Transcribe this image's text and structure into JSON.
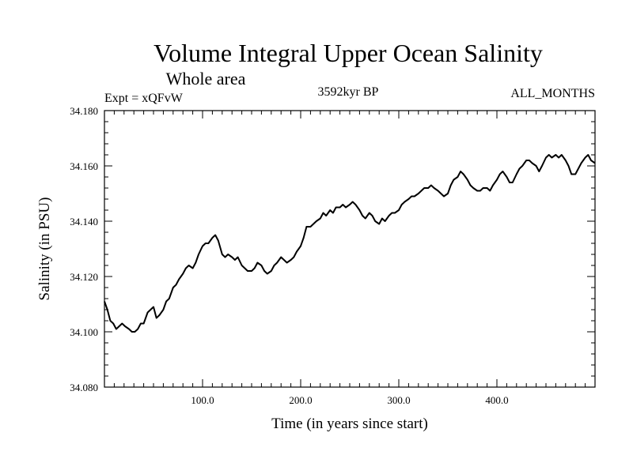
{
  "chart_data": {
    "type": "line",
    "title": "Volume Integral Upper Ocean Salinity",
    "subtitle": "Whole area",
    "experiment_label": "Expt = xQFvW",
    "period_label": "3592kyr BP",
    "months_label": "ALL_MONTHS",
    "xlabel": "Time (in years since start)",
    "ylabel": "Salinity (in PSU)",
    "xlim": [
      0,
      500
    ],
    "ylim": [
      34.08,
      34.18
    ],
    "x_ticks": [
      100,
      200,
      300,
      400
    ],
    "x_tick_labels": [
      "100.0",
      "200.0",
      "300.0",
      "400.0"
    ],
    "y_ticks": [
      34.08,
      34.1,
      34.12,
      34.14,
      34.16,
      34.18
    ],
    "y_tick_labels": [
      "34.080",
      "34.100",
      "34.120",
      "34.140",
      "34.160",
      "34.180"
    ],
    "grid": false,
    "series": [
      {
        "name": "Salinity",
        "color": "#000000",
        "x": [
          0,
          3,
          6,
          9,
          12,
          15,
          18,
          21,
          25,
          28,
          31,
          34,
          37,
          40,
          44,
          47,
          50,
          53,
          56,
          60,
          63,
          66,
          70,
          73,
          76,
          80,
          83,
          86,
          90,
          93,
          96,
          100,
          103,
          106,
          110,
          113,
          116,
          120,
          123,
          126,
          130,
          133,
          136,
          140,
          143,
          146,
          150,
          153,
          156,
          160,
          163,
          166,
          170,
          173,
          176,
          180,
          183,
          186,
          190,
          193,
          196,
          200,
          203,
          206,
          210,
          213,
          216,
          220,
          223,
          226,
          230,
          233,
          236,
          240,
          243,
          246,
          250,
          253,
          256,
          260,
          263,
          266,
          270,
          273,
          276,
          280,
          283,
          286,
          290,
          293,
          296,
          300,
          303,
          306,
          310,
          313,
          316,
          320,
          323,
          326,
          330,
          333,
          336,
          340,
          343,
          346,
          350,
          353,
          356,
          360,
          363,
          366,
          370,
          373,
          376,
          380,
          383,
          386,
          390,
          393,
          396,
          400,
          403,
          406,
          410,
          413,
          416,
          420,
          423,
          426,
          430,
          433,
          436,
          440,
          443,
          446,
          450,
          453,
          456,
          460,
          463,
          466,
          470,
          473,
          476,
          480,
          483,
          486,
          490,
          493,
          496,
          500
        ],
        "values": [
          34.111,
          34.108,
          34.104,
          34.103,
          34.101,
          34.102,
          34.103,
          34.102,
          34.101,
          34.1,
          34.1,
          34.101,
          34.103,
          34.103,
          34.107,
          34.108,
          34.109,
          34.105,
          34.106,
          34.108,
          34.111,
          34.112,
          34.116,
          34.117,
          34.119,
          34.121,
          34.123,
          34.124,
          34.123,
          34.125,
          34.128,
          34.131,
          34.132,
          34.132,
          34.134,
          34.135,
          34.133,
          34.128,
          34.127,
          34.128,
          34.127,
          34.126,
          34.127,
          34.124,
          34.123,
          34.122,
          34.122,
          34.123,
          34.125,
          34.124,
          34.122,
          34.121,
          34.122,
          34.124,
          34.125,
          34.127,
          34.126,
          34.125,
          34.126,
          34.127,
          34.129,
          34.131,
          34.134,
          34.138,
          34.138,
          34.139,
          34.14,
          34.141,
          34.143,
          34.142,
          34.144,
          34.143,
          34.145,
          34.145,
          34.146,
          34.145,
          34.146,
          34.147,
          34.146,
          34.144,
          34.142,
          34.141,
          34.143,
          34.142,
          34.14,
          34.139,
          34.141,
          34.14,
          34.142,
          34.143,
          34.143,
          34.144,
          34.146,
          34.147,
          34.148,
          34.149,
          34.149,
          34.15,
          34.151,
          34.152,
          34.152,
          34.153,
          34.152,
          34.151,
          34.15,
          34.149,
          34.15,
          34.153,
          34.155,
          34.156,
          34.158,
          34.157,
          34.155,
          34.153,
          34.152,
          34.151,
          34.151,
          34.152,
          34.152,
          34.151,
          34.153,
          34.155,
          34.157,
          34.158,
          34.156,
          34.154,
          34.154,
          34.157,
          34.159,
          34.16,
          34.162,
          34.162,
          34.161,
          34.16,
          34.158,
          34.16,
          34.163,
          34.164,
          34.163,
          34.164,
          34.163,
          34.164,
          34.162,
          34.16,
          34.157,
          34.157,
          34.159,
          34.161,
          34.163,
          34.164,
          34.162,
          34.161
        ]
      }
    ]
  }
}
